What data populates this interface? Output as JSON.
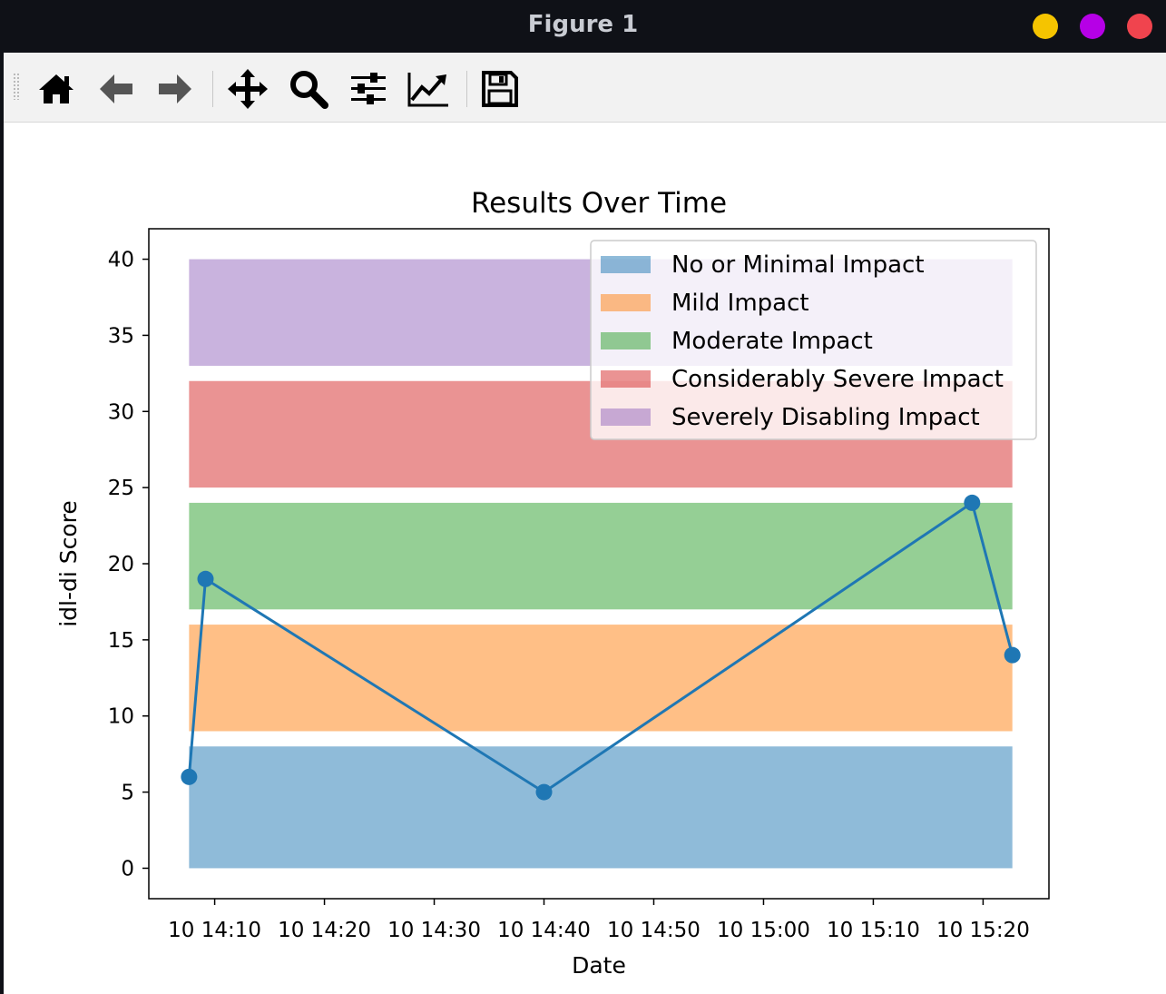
{
  "window": {
    "title": "Figure 1",
    "buttons": [
      {
        "name": "minimize",
        "color": "#f5c400"
      },
      {
        "name": "maximize",
        "color": "#b600e6"
      },
      {
        "name": "close",
        "color": "#f0444e"
      }
    ]
  },
  "toolbar": {
    "items": [
      {
        "name": "home-icon"
      },
      {
        "name": "back-arrow-icon"
      },
      {
        "name": "forward-arrow-icon"
      },
      {
        "name": "pan-move-icon"
      },
      {
        "name": "zoom-magnifier-icon"
      },
      {
        "name": "configure-subplots-icon"
      },
      {
        "name": "edit-axes-lines-icon"
      },
      {
        "name": "save-floppy-icon"
      }
    ]
  },
  "chart_data": {
    "type": "line",
    "title": "Results Over Time",
    "xlabel": "Date",
    "ylabel": "idl-di Score",
    "ylim": [
      -2,
      42
    ],
    "yticks": [
      0,
      5,
      10,
      15,
      20,
      25,
      30,
      35,
      40
    ],
    "xlim": [
      "2023-10-10 14:04",
      "2023-10-10 15:26"
    ],
    "xticks": [
      "2023-10-10 14:10",
      "2023-10-10 14:20",
      "2023-10-10 14:30",
      "2023-10-10 14:40",
      "2023-10-10 14:50",
      "2023-10-10 15:00",
      "2023-10-10 15:10",
      "2023-10-10 15:20"
    ],
    "xticklabels": [
      "10 14:10",
      "10 14:20",
      "10 14:30",
      "10 14:40",
      "10 14:50",
      "10 15:00",
      "10 15:10",
      "10 15:20"
    ],
    "grid": false,
    "legend_position": "top-right",
    "bands": [
      {
        "name": "No or Minimal Impact",
        "y0": 0,
        "y1": 8,
        "color": "#1f77b4",
        "opacity": 0.5
      },
      {
        "name": "Mild Impact",
        "y0": 9,
        "y1": 16,
        "color": "#ff7f0e",
        "opacity": 0.5
      },
      {
        "name": "Moderate Impact",
        "y0": 17,
        "y1": 24,
        "color": "#2ca02c",
        "opacity": 0.5
      },
      {
        "name": "Considerably Severe Impact",
        "y0": 25,
        "y1": 32,
        "color": "#d62728",
        "opacity": 0.5
      },
      {
        "name": "Severely Disabling Impact",
        "y0": 33,
        "y1": 40,
        "color": "#9467bd",
        "opacity": 0.5
      }
    ],
    "bands_x": [
      "2023-10-10 14:07:40",
      "2023-10-10 15:22:40"
    ],
    "series": [
      {
        "color": "#1f77b4",
        "points": [
          {
            "x": "2023-10-10 14:07:40",
            "y": 6
          },
          {
            "x": "2023-10-10 14:09:10",
            "y": 19
          },
          {
            "x": "2023-10-10 14:40:00",
            "y": 5
          },
          {
            "x": "2023-10-10 15:19:00",
            "y": 24
          },
          {
            "x": "2023-10-10 15:22:40",
            "y": 14
          }
        ]
      }
    ]
  }
}
